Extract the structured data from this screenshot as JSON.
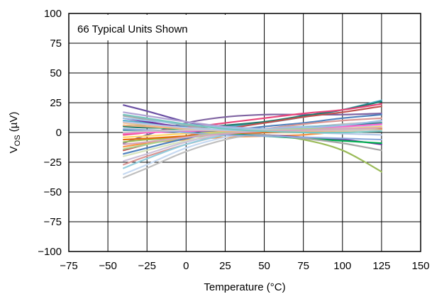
{
  "chart_data": {
    "type": "line",
    "annotation": "66 Typical Units Shown",
    "xlabel": "Temperature (°C)",
    "ylabel": {
      "base": "V",
      "sub": "OS",
      "unit": " (µV)"
    },
    "xlim": [
      -75,
      150
    ],
    "ylim": [
      -100,
      100
    ],
    "x_ticks": [
      -75,
      -50,
      -25,
      0,
      25,
      50,
      75,
      100,
      125,
      150
    ],
    "x_tick_labels": [
      "−75",
      "−50",
      "−25",
      "0",
      "25",
      "50",
      "75",
      "100",
      "125",
      "150"
    ],
    "y_ticks": [
      -100,
      -75,
      -50,
      -25,
      0,
      25,
      50,
      75,
      100
    ],
    "y_tick_labels": [
      "−100",
      "−75",
      "−50",
      "−25",
      "0",
      "25",
      "50",
      "75",
      "100"
    ],
    "grid": true,
    "legend": "none",
    "x": [
      -40,
      -25,
      0,
      25,
      50,
      75,
      100,
      125
    ],
    "series": [
      {
        "color": "#6a4fa3",
        "values": [
          23,
          18,
          9,
          3,
          1,
          1,
          4,
          10
        ]
      },
      {
        "color": "#8064a2",
        "values": [
          -9,
          -2,
          8,
          13,
          15,
          15,
          15,
          16
        ]
      },
      {
        "color": "#9bbb59",
        "values": [
          -8,
          -6,
          -4,
          -2,
          -2,
          -6,
          -15,
          -33
        ]
      },
      {
        "color": "#4bacc6",
        "values": [
          10,
          8,
          5,
          5,
          8,
          13,
          19,
          27
        ]
      },
      {
        "color": "#1f7a6c",
        "values": [
          5,
          4,
          4,
          6,
          9,
          14,
          19,
          26
        ]
      },
      {
        "color": "#e8467a",
        "values": [
          -2,
          0,
          4,
          8,
          12,
          16,
          19,
          24
        ]
      },
      {
        "color": "#c0504d",
        "values": [
          -15,
          -10,
          -3,
          3,
          8,
          13,
          17,
          22
        ]
      },
      {
        "color": "#f79646",
        "values": [
          -12,
          -9,
          -6,
          -4,
          -3,
          -2,
          1,
          4
        ]
      },
      {
        "color": "#4f81bd",
        "values": [
          -18,
          -13,
          -5,
          1,
          5,
          8,
          12,
          15
        ]
      },
      {
        "color": "#b0a3d4",
        "values": [
          17,
          14,
          9,
          5,
          3,
          2,
          3,
          6
        ]
      },
      {
        "color": "#c6d9f1",
        "values": [
          -35,
          -27,
          -13,
          -4,
          1,
          4,
          5,
          6
        ]
      },
      {
        "color": "#bfbfbf",
        "values": [
          -38,
          -30,
          -16,
          -6,
          0,
          4,
          7,
          9
        ]
      },
      {
        "color": "#d99694",
        "values": [
          -27,
          -20,
          -10,
          -2,
          3,
          7,
          10,
          12
        ]
      },
      {
        "color": "#93cddd",
        "values": [
          -30,
          -22,
          -10,
          -2,
          3,
          5,
          6,
          7
        ]
      },
      {
        "color": "#fac08f",
        "values": [
          8,
          6,
          3,
          1,
          0,
          0,
          1,
          3
        ]
      },
      {
        "color": "#7030a0",
        "values": [
          12,
          9,
          4,
          0,
          -2,
          -4,
          -6,
          -10
        ]
      },
      {
        "color": "#00b050",
        "values": [
          6,
          5,
          2,
          -1,
          -3,
          -5,
          -7,
          -9
        ]
      },
      {
        "color": "#a6a6a6",
        "values": [
          14,
          11,
          6,
          1,
          -2,
          -5,
          -9,
          -15
        ]
      },
      {
        "color": "#d7e4bd",
        "values": [
          -20,
          -15,
          -7,
          -1,
          2,
          3,
          4,
          4
        ]
      },
      {
        "color": "#ccc1da",
        "values": [
          -24,
          -18,
          -8,
          -1,
          3,
          4,
          4,
          3
        ]
      },
      {
        "color": "#e46c0a",
        "values": [
          -6,
          -5,
          -3,
          -1,
          0,
          1,
          2,
          3
        ]
      },
      {
        "color": "#31859c",
        "values": [
          2,
          2,
          1,
          1,
          2,
          4,
          6,
          8
        ]
      },
      {
        "color": "#ff66cc",
        "values": [
          -1,
          0,
          1,
          2,
          3,
          4,
          5,
          7
        ]
      },
      {
        "color": "#9dc3e6",
        "values": [
          12,
          10,
          7,
          4,
          3,
          4,
          6,
          10
        ]
      },
      {
        "color": "#ffd966",
        "values": [
          -4,
          -3,
          -1,
          0,
          1,
          2,
          3,
          5
        ]
      },
      {
        "color": "#8faadc",
        "values": [
          3,
          2,
          0,
          -2,
          -3,
          -4,
          -5,
          -6
        ]
      },
      {
        "color": "#a9d18e",
        "values": [
          -14,
          -10,
          -4,
          0,
          2,
          3,
          3,
          2
        ]
      },
      {
        "color": "#f4b183",
        "values": [
          6,
          5,
          3,
          1,
          1,
          1,
          2,
          4
        ]
      },
      {
        "color": "#c9c9c9",
        "values": [
          0,
          1,
          2,
          2,
          2,
          2,
          2,
          2
        ]
      },
      {
        "color": "#b4c7e7",
        "values": [
          9,
          7,
          4,
          2,
          1,
          0,
          -1,
          -2
        ]
      },
      {
        "color": "#d5a6bd",
        "values": [
          -10,
          -8,
          -4,
          -1,
          1,
          2,
          3,
          4
        ]
      },
      {
        "color": "#76c7c0",
        "values": [
          15,
          12,
          7,
          3,
          1,
          0,
          0,
          1
        ]
      }
    ]
  }
}
